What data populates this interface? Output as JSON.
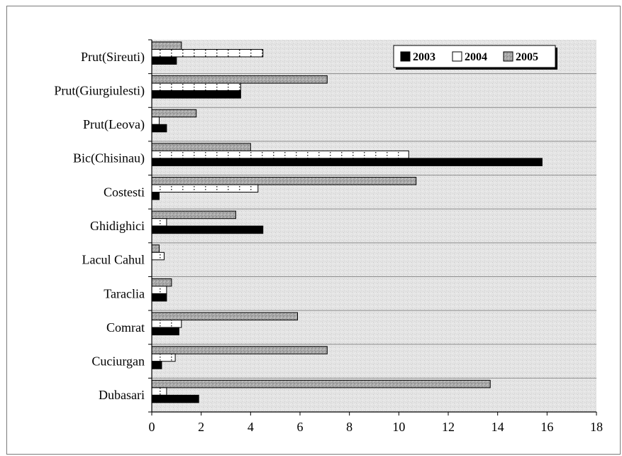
{
  "chart_data": {
    "type": "bar",
    "orientation": "horizontal",
    "categories": [
      "Prut(Sireuti)",
      "Prut(Giurgiulesti)",
      "Prut(Leova)",
      "Bic(Chisinau)",
      "Costesti",
      "Ghidighici",
      "Lacul Cahul",
      "Taraclia",
      "Comrat",
      "Cuciurgan",
      "Dubasari"
    ],
    "series": [
      {
        "name": "2003",
        "values": [
          1.0,
          3.6,
          0.6,
          15.8,
          0.3,
          4.5,
          0.0,
          0.6,
          1.1,
          0.4,
          1.9
        ],
        "color": "#000000"
      },
      {
        "name": "2004",
        "values": [
          4.5,
          3.6,
          0.3,
          10.4,
          4.3,
          0.6,
          0.5,
          0.6,
          1.2,
          0.95,
          0.6
        ],
        "color": "#ffffff"
      },
      {
        "name": "2005",
        "values": [
          1.2,
          7.1,
          1.8,
          4.0,
          10.7,
          3.4,
          0.3,
          0.8,
          5.9,
          7.1,
          13.7
        ],
        "color": "#a8a8a8"
      }
    ],
    "xlim": [
      0,
      18
    ],
    "xticks": [
      0,
      2,
      4,
      6,
      8,
      10,
      12,
      14,
      16,
      18
    ],
    "title": "",
    "xlabel": "",
    "ylabel": "",
    "grid": "horizontal",
    "legend_position": "top-right",
    "plot_background": "textured light gray"
  }
}
